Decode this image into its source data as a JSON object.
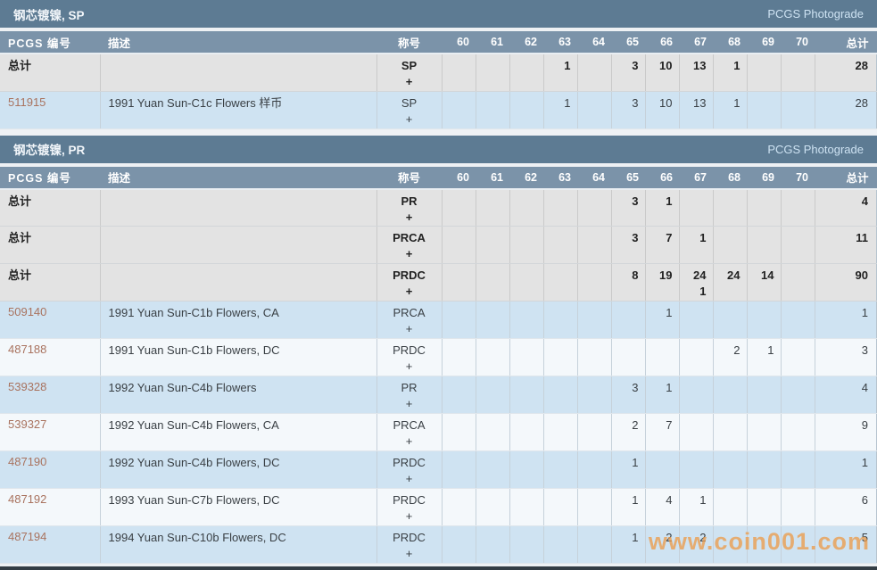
{
  "watermark": "www.coin001.com",
  "colors": {
    "section_bar": "#5d7b93",
    "column_header": "#7b93a9",
    "total_row": "#e3e3e3",
    "blue_row": "#cfe3f2",
    "white_row": "#f4f8fb",
    "link": "#a9735f",
    "watermark": "#ec9946"
  },
  "columns": {
    "id": "PCGS 编号",
    "desc": "描述",
    "designation": "称号",
    "grades": [
      "60",
      "61",
      "62",
      "63",
      "64",
      "65",
      "66",
      "67",
      "68",
      "69",
      "70"
    ],
    "total": "总计"
  },
  "sections": [
    {
      "title": "钢芯镀镍, SP",
      "photograde": "PCGS Photograde",
      "rows": [
        {
          "id": "总计",
          "type": "total",
          "desc": "",
          "designation": "SP",
          "plus": "+",
          "grades": [
            "",
            "",
            "",
            "1",
            "",
            "3",
            "10",
            "13",
            "1",
            "",
            ""
          ],
          "grades_plus": [
            "",
            "",
            "",
            "",
            "",
            "",
            "",
            "",
            "",
            "",
            ""
          ],
          "total": "28"
        },
        {
          "id": "511915",
          "type": "link",
          "shade": "blue",
          "desc": "1991 Yuan Sun-C1c Flowers 样币",
          "designation": "SP",
          "plus": "+",
          "grades": [
            "",
            "",
            "",
            "1",
            "",
            "3",
            "10",
            "13",
            "1",
            "",
            ""
          ],
          "grades_plus": [
            "",
            "",
            "",
            "",
            "",
            "",
            "",
            "",
            "",
            "",
            ""
          ],
          "total": "28"
        }
      ]
    },
    {
      "title": "钢芯镀镍, PR",
      "photograde": "PCGS Photograde",
      "rows": [
        {
          "id": "总计",
          "type": "total",
          "desc": "",
          "designation": "PR",
          "plus": "+",
          "grades": [
            "",
            "",
            "",
            "",
            "",
            "3",
            "1",
            "",
            "",
            "",
            ""
          ],
          "grades_plus": [
            "",
            "",
            "",
            "",
            "",
            "",
            "",
            "",
            "",
            "",
            ""
          ],
          "total": "4"
        },
        {
          "id": "总计",
          "type": "total",
          "desc": "",
          "designation": "PRCA",
          "plus": "+",
          "grades": [
            "",
            "",
            "",
            "",
            "",
            "3",
            "7",
            "1",
            "",
            "",
            ""
          ],
          "grades_plus": [
            "",
            "",
            "",
            "",
            "",
            "",
            "",
            "",
            "",
            "",
            ""
          ],
          "total": "11"
        },
        {
          "id": "总计",
          "type": "total",
          "desc": "",
          "designation": "PRDC",
          "plus": "+",
          "grades": [
            "",
            "",
            "",
            "",
            "",
            "8",
            "19",
            "24",
            "24",
            "14",
            ""
          ],
          "grades_plus": [
            "",
            "",
            "",
            "",
            "",
            "",
            "",
            "1",
            "",
            "",
            ""
          ],
          "total": "90"
        },
        {
          "id": "509140",
          "type": "link",
          "shade": "blue",
          "desc": "1991 Yuan Sun-C1b Flowers, CA",
          "designation": "PRCA",
          "plus": "+",
          "grades": [
            "",
            "",
            "",
            "",
            "",
            "",
            "1",
            "",
            "",
            "",
            ""
          ],
          "grades_plus": [
            "",
            "",
            "",
            "",
            "",
            "",
            "",
            "",
            "",
            "",
            ""
          ],
          "total": "1"
        },
        {
          "id": "487188",
          "type": "link",
          "shade": "white",
          "desc": "1991 Yuan Sun-C1b Flowers, DC",
          "designation": "PRDC",
          "plus": "+",
          "grades": [
            "",
            "",
            "",
            "",
            "",
            "",
            "",
            "",
            "2",
            "1",
            ""
          ],
          "grades_plus": [
            "",
            "",
            "",
            "",
            "",
            "",
            "",
            "",
            "",
            "",
            ""
          ],
          "total": "3"
        },
        {
          "id": "539328",
          "type": "link",
          "shade": "blue",
          "desc": "1992 Yuan Sun-C4b Flowers",
          "designation": "PR",
          "plus": "+",
          "grades": [
            "",
            "",
            "",
            "",
            "",
            "3",
            "1",
            "",
            "",
            "",
            ""
          ],
          "grades_plus": [
            "",
            "",
            "",
            "",
            "",
            "",
            "",
            "",
            "",
            "",
            ""
          ],
          "total": "4"
        },
        {
          "id": "539327",
          "type": "link",
          "shade": "white",
          "desc": "1992 Yuan Sun-C4b Flowers, CA",
          "designation": "PRCA",
          "plus": "+",
          "grades": [
            "",
            "",
            "",
            "",
            "",
            "2",
            "7",
            "",
            "",
            "",
            ""
          ],
          "grades_plus": [
            "",
            "",
            "",
            "",
            "",
            "",
            "",
            "",
            "",
            "",
            ""
          ],
          "total": "9"
        },
        {
          "id": "487190",
          "type": "link",
          "shade": "blue",
          "desc": "1992 Yuan Sun-C4b Flowers, DC",
          "designation": "PRDC",
          "plus": "+",
          "grades": [
            "",
            "",
            "",
            "",
            "",
            "1",
            "",
            "",
            "",
            "",
            ""
          ],
          "grades_plus": [
            "",
            "",
            "",
            "",
            "",
            "",
            "",
            "",
            "",
            "",
            ""
          ],
          "total": "1"
        },
        {
          "id": "487192",
          "type": "link",
          "shade": "white",
          "desc": "1993 Yuan Sun-C7b Flowers, DC",
          "designation": "PRDC",
          "plus": "+",
          "grades": [
            "",
            "",
            "",
            "",
            "",
            "1",
            "4",
            "1",
            "",
            "",
            ""
          ],
          "grades_plus": [
            "",
            "",
            "",
            "",
            "",
            "",
            "",
            "",
            "",
            "",
            ""
          ],
          "total": "6"
        },
        {
          "id": "487194",
          "type": "link",
          "shade": "blue",
          "desc": "1994 Yuan Sun-C10b Flowers, DC",
          "designation": "PRDC",
          "plus": "+",
          "grades": [
            "",
            "",
            "",
            "",
            "",
            "1",
            "2",
            "2",
            "",
            "",
            ""
          ],
          "grades_plus": [
            "",
            "",
            "",
            "",
            "",
            "",
            "",
            "",
            "",
            "",
            ""
          ],
          "total": "5"
        }
      ]
    }
  ]
}
